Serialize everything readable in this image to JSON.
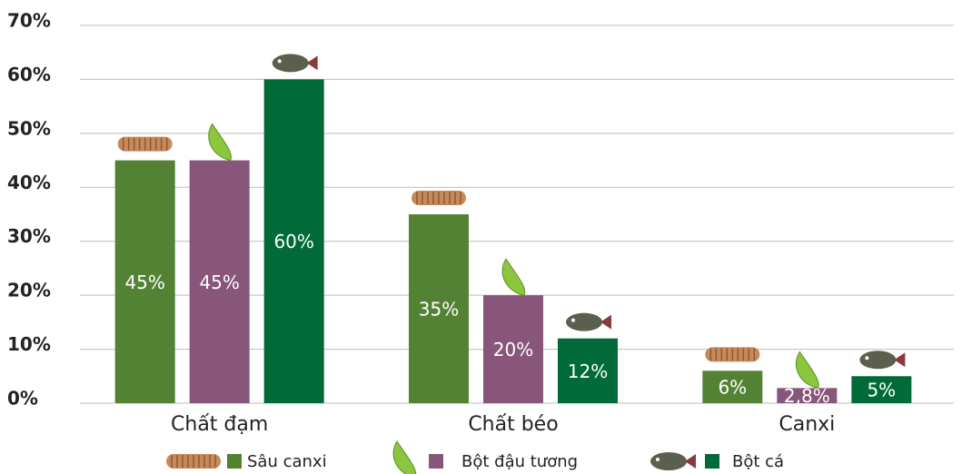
{
  "chart_data": {
    "type": "bar",
    "categories": [
      "Chất đạm",
      "Chất béo",
      "Canxi"
    ],
    "series": [
      {
        "name": "Sâu canxi",
        "color": "#548235",
        "values": [
          45,
          35,
          6
        ],
        "value_labels": [
          "45%",
          "35%",
          "6%"
        ]
      },
      {
        "name": "Bột đậu tương",
        "color": "#87567a",
        "values": [
          45,
          20,
          2.8
        ],
        "value_labels": [
          "45%",
          "20%",
          "2,8%"
        ]
      },
      {
        "name": "Bột cá",
        "color": "#006b38",
        "values": [
          60,
          12,
          5
        ],
        "value_labels": [
          "60%",
          "12%",
          "5%"
        ]
      }
    ],
    "ylim": [
      0,
      70
    ],
    "yticks": [
      {
        "value": 0,
        "label": "0%"
      },
      {
        "value": 10,
        "label": "10%"
      },
      {
        "value": 20,
        "label": "20%"
      },
      {
        "value": 30,
        "label": "30%"
      },
      {
        "value": 40,
        "label": "40%"
      },
      {
        "value": 50,
        "label": "50%"
      },
      {
        "value": 60,
        "label": "60%"
      },
      {
        "value": 70,
        "label": "70%"
      }
    ],
    "grid": true
  }
}
